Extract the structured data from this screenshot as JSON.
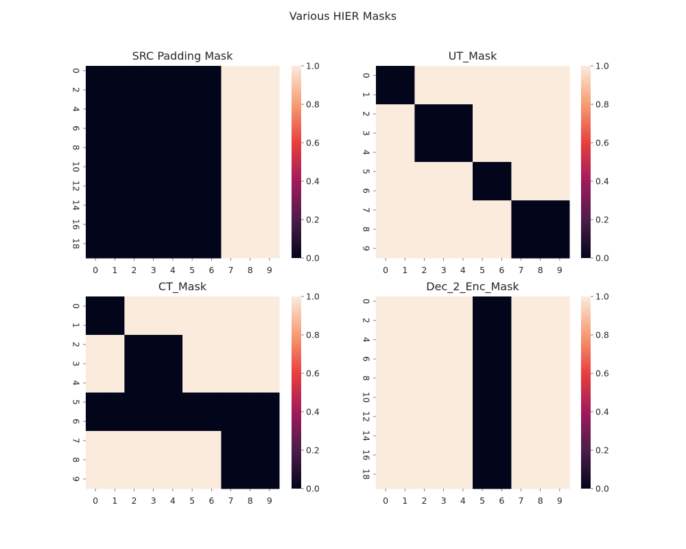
{
  "figure": {
    "suptitle": "Various HIER Masks"
  },
  "colormap": {
    "name": "rocket",
    "stops": [
      "#03051a",
      "#4c1d4b",
      "#a11a5b",
      "#e83f3f",
      "#f69c73",
      "#faebdd"
    ]
  },
  "chart_data": [
    {
      "type": "heatmap",
      "title": "SRC Padding Mask",
      "x_ticks": [
        "0",
        "1",
        "2",
        "3",
        "4",
        "5",
        "6",
        "7",
        "8",
        "9"
      ],
      "y_ticks": [
        "0",
        "2",
        "4",
        "6",
        "8",
        "10",
        "12",
        "14",
        "16",
        "18"
      ],
      "n_rows": 20,
      "n_cols": 10,
      "colorbar": {
        "ticks": [
          "0.0",
          "0.2",
          "0.4",
          "0.6",
          "0.8",
          "1.0"
        ],
        "vmin": 0,
        "vmax": 1
      },
      "values": [
        [
          0,
          0,
          0,
          0,
          0,
          0,
          0,
          1,
          1,
          1
        ],
        [
          0,
          0,
          0,
          0,
          0,
          0,
          0,
          1,
          1,
          1
        ],
        [
          0,
          0,
          0,
          0,
          0,
          0,
          0,
          1,
          1,
          1
        ],
        [
          0,
          0,
          0,
          0,
          0,
          0,
          0,
          1,
          1,
          1
        ],
        [
          0,
          0,
          0,
          0,
          0,
          0,
          0,
          1,
          1,
          1
        ],
        [
          0,
          0,
          0,
          0,
          0,
          0,
          0,
          1,
          1,
          1
        ],
        [
          0,
          0,
          0,
          0,
          0,
          0,
          0,
          1,
          1,
          1
        ],
        [
          0,
          0,
          0,
          0,
          0,
          0,
          0,
          1,
          1,
          1
        ],
        [
          0,
          0,
          0,
          0,
          0,
          0,
          0,
          1,
          1,
          1
        ],
        [
          0,
          0,
          0,
          0,
          0,
          0,
          0,
          1,
          1,
          1
        ],
        [
          0,
          0,
          0,
          0,
          0,
          0,
          0,
          1,
          1,
          1
        ],
        [
          0,
          0,
          0,
          0,
          0,
          0,
          0,
          1,
          1,
          1
        ],
        [
          0,
          0,
          0,
          0,
          0,
          0,
          0,
          1,
          1,
          1
        ],
        [
          0,
          0,
          0,
          0,
          0,
          0,
          0,
          1,
          1,
          1
        ],
        [
          0,
          0,
          0,
          0,
          0,
          0,
          0,
          1,
          1,
          1
        ],
        [
          0,
          0,
          0,
          0,
          0,
          0,
          0,
          1,
          1,
          1
        ],
        [
          0,
          0,
          0,
          0,
          0,
          0,
          0,
          1,
          1,
          1
        ],
        [
          0,
          0,
          0,
          0,
          0,
          0,
          0,
          1,
          1,
          1
        ],
        [
          0,
          0,
          0,
          0,
          0,
          0,
          0,
          1,
          1,
          1
        ],
        [
          0,
          0,
          0,
          0,
          0,
          0,
          0,
          1,
          1,
          1
        ]
      ]
    },
    {
      "type": "heatmap",
      "title": "UT_Mask",
      "x_ticks": [
        "0",
        "1",
        "2",
        "3",
        "4",
        "5",
        "6",
        "7",
        "8",
        "9"
      ],
      "y_ticks": [
        "0",
        "1",
        "2",
        "3",
        "4",
        "5",
        "6",
        "7",
        "8",
        "9"
      ],
      "n_rows": 10,
      "n_cols": 10,
      "colorbar": {
        "ticks": [
          "0.0",
          "0.2",
          "0.4",
          "0.6",
          "0.8",
          "1.0"
        ],
        "vmin": 0,
        "vmax": 1
      },
      "values": [
        [
          0,
          0,
          1,
          1,
          1,
          1,
          1,
          1,
          1,
          1
        ],
        [
          0,
          0,
          1,
          1,
          1,
          1,
          1,
          1,
          1,
          1
        ],
        [
          1,
          1,
          0,
          0,
          0,
          1,
          1,
          1,
          1,
          1
        ],
        [
          1,
          1,
          0,
          0,
          0,
          1,
          1,
          1,
          1,
          1
        ],
        [
          1,
          1,
          0,
          0,
          0,
          1,
          1,
          1,
          1,
          1
        ],
        [
          1,
          1,
          1,
          1,
          1,
          0,
          0,
          1,
          1,
          1
        ],
        [
          1,
          1,
          1,
          1,
          1,
          0,
          0,
          1,
          1,
          1
        ],
        [
          1,
          1,
          1,
          1,
          1,
          1,
          1,
          0,
          0,
          0
        ],
        [
          1,
          1,
          1,
          1,
          1,
          1,
          1,
          0,
          0,
          0
        ],
        [
          1,
          1,
          1,
          1,
          1,
          1,
          1,
          0,
          0,
          0
        ]
      ]
    },
    {
      "type": "heatmap",
      "title": "CT_Mask",
      "x_ticks": [
        "0",
        "1",
        "2",
        "3",
        "4",
        "5",
        "6",
        "7",
        "8",
        "9"
      ],
      "y_ticks": [
        "0",
        "1",
        "2",
        "3",
        "4",
        "5",
        "6",
        "7",
        "8",
        "9"
      ],
      "n_rows": 10,
      "n_cols": 10,
      "colorbar": {
        "ticks": [
          "0.0",
          "0.2",
          "0.4",
          "0.6",
          "0.8",
          "1.0"
        ],
        "vmin": 0,
        "vmax": 1
      },
      "values": [
        [
          0,
          0,
          1,
          1,
          1,
          1,
          1,
          1,
          1,
          1
        ],
        [
          0,
          0,
          1,
          1,
          1,
          1,
          1,
          1,
          1,
          1
        ],
        [
          1,
          1,
          0,
          0,
          0,
          1,
          1,
          1,
          1,
          1
        ],
        [
          1,
          1,
          0,
          0,
          0,
          1,
          1,
          1,
          1,
          1
        ],
        [
          1,
          1,
          0,
          0,
          0,
          1,
          1,
          1,
          1,
          1
        ],
        [
          0,
          0,
          0,
          0,
          0,
          0,
          0,
          0,
          0,
          0
        ],
        [
          0,
          0,
          0,
          0,
          0,
          0,
          0,
          0,
          0,
          0
        ],
        [
          1,
          1,
          1,
          1,
          1,
          1,
          1,
          0,
          0,
          0
        ],
        [
          1,
          1,
          1,
          1,
          1,
          1,
          1,
          0,
          0,
          0
        ],
        [
          1,
          1,
          1,
          1,
          1,
          1,
          1,
          0,
          0,
          0
        ]
      ]
    },
    {
      "type": "heatmap",
      "title": "Dec_2_Enc_Mask",
      "x_ticks": [
        "0",
        "1",
        "2",
        "3",
        "4",
        "5",
        "6",
        "7",
        "8",
        "9"
      ],
      "y_ticks": [
        "0",
        "2",
        "4",
        "6",
        "8",
        "10",
        "12",
        "14",
        "16",
        "18"
      ],
      "n_rows": 20,
      "n_cols": 10,
      "colorbar": {
        "ticks": [
          "0.0",
          "0.2",
          "0.4",
          "0.6",
          "0.8",
          "1.0"
        ],
        "vmin": 0,
        "vmax": 1
      },
      "values": [
        [
          1,
          1,
          1,
          1,
          1,
          0,
          0,
          1,
          1,
          1
        ],
        [
          1,
          1,
          1,
          1,
          1,
          0,
          0,
          1,
          1,
          1
        ],
        [
          1,
          1,
          1,
          1,
          1,
          0,
          0,
          1,
          1,
          1
        ],
        [
          1,
          1,
          1,
          1,
          1,
          0,
          0,
          1,
          1,
          1
        ],
        [
          1,
          1,
          1,
          1,
          1,
          0,
          0,
          1,
          1,
          1
        ],
        [
          1,
          1,
          1,
          1,
          1,
          0,
          0,
          1,
          1,
          1
        ],
        [
          1,
          1,
          1,
          1,
          1,
          0,
          0,
          1,
          1,
          1
        ],
        [
          1,
          1,
          1,
          1,
          1,
          0,
          0,
          1,
          1,
          1
        ],
        [
          1,
          1,
          1,
          1,
          1,
          0,
          0,
          1,
          1,
          1
        ],
        [
          1,
          1,
          1,
          1,
          1,
          0,
          0,
          1,
          1,
          1
        ],
        [
          1,
          1,
          1,
          1,
          1,
          0,
          0,
          1,
          1,
          1
        ],
        [
          1,
          1,
          1,
          1,
          1,
          0,
          0,
          1,
          1,
          1
        ],
        [
          1,
          1,
          1,
          1,
          1,
          0,
          0,
          1,
          1,
          1
        ],
        [
          1,
          1,
          1,
          1,
          1,
          0,
          0,
          1,
          1,
          1
        ],
        [
          1,
          1,
          1,
          1,
          1,
          0,
          0,
          1,
          1,
          1
        ],
        [
          1,
          1,
          1,
          1,
          1,
          0,
          0,
          1,
          1,
          1
        ],
        [
          1,
          1,
          1,
          1,
          1,
          0,
          0,
          1,
          1,
          1
        ],
        [
          1,
          1,
          1,
          1,
          1,
          0,
          0,
          1,
          1,
          1
        ],
        [
          1,
          1,
          1,
          1,
          1,
          0,
          0,
          1,
          1,
          1
        ],
        [
          1,
          1,
          1,
          1,
          1,
          0,
          0,
          1,
          1,
          1
        ]
      ]
    }
  ]
}
